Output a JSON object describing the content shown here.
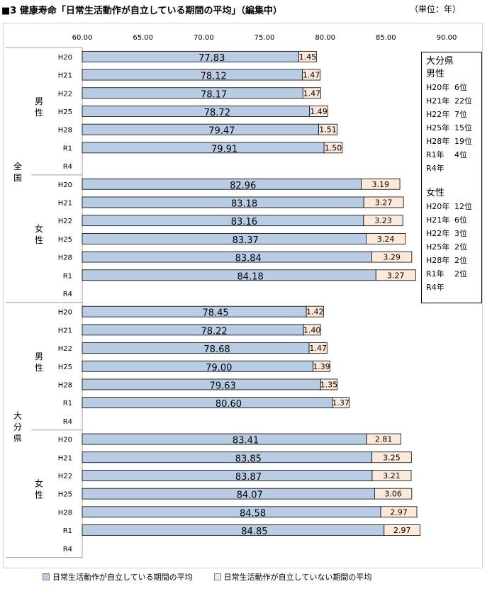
{
  "title": "■3  健康寿命「日常生活動作が自立している期間の平均」（編集中）",
  "unit": "（単位：年）",
  "colors": {
    "independent": "#b8cce4",
    "dependent": "#fde9d9",
    "border": "#000000",
    "grid": "#c8c8c8"
  },
  "rank_box": {
    "header": "大分県",
    "male_label": "男性",
    "male": [
      {
        "year": "H20年",
        "rank": "6位"
      },
      {
        "year": "H21年",
        "rank": "22位"
      },
      {
        "year": "H22年",
        "rank": "7位"
      },
      {
        "year": "H25年",
        "rank": "15位"
      },
      {
        "year": "H28年",
        "rank": "19位"
      },
      {
        "year": "R1年",
        "rank": "4位"
      },
      {
        "year": "R4年",
        "rank": ""
      }
    ],
    "female_label": "女性",
    "female": [
      {
        "year": "H20年",
        "rank": "12位"
      },
      {
        "year": "H21年",
        "rank": "6位"
      },
      {
        "year": "H22年",
        "rank": "3位"
      },
      {
        "year": "H25年",
        "rank": "2位"
      },
      {
        "year": "H28年",
        "rank": "2位"
      },
      {
        "year": "R1年",
        "rank": "2位"
      },
      {
        "year": "R4年",
        "rank": ""
      }
    ]
  },
  "chart_data": {
    "type": "bar",
    "orientation": "horizontal",
    "stacked": true,
    "xlim": [
      60,
      90
    ],
    "xticks": [
      "60.00",
      "65.00",
      "70.00",
      "75.00",
      "80.00",
      "85.00",
      "90.00"
    ],
    "grid": false,
    "legend_position": "bottom",
    "series": [
      {
        "name": "日常生活動作が自立している期間の平均",
        "color": "#b8cce4"
      },
      {
        "name": "日常生活動作が自立していない期間の平均",
        "color": "#fde9d9"
      }
    ],
    "groups": [
      {
        "region": "全国",
        "sex": "男性",
        "rows": [
          {
            "year": "H20",
            "independent": 77.83,
            "dependent": 1.45
          },
          {
            "year": "H21",
            "independent": 78.12,
            "dependent": 1.47
          },
          {
            "year": "H22",
            "independent": 78.17,
            "dependent": 1.47
          },
          {
            "year": "H25",
            "independent": 78.72,
            "dependent": 1.49
          },
          {
            "year": "H28",
            "independent": 79.47,
            "dependent": 1.51
          },
          {
            "year": "R1",
            "independent": 79.91,
            "dependent": 1.5
          },
          {
            "year": "R4",
            "independent": null,
            "dependent": null
          }
        ]
      },
      {
        "region": "全国",
        "sex": "女性",
        "rows": [
          {
            "year": "H20",
            "independent": 82.96,
            "dependent": 3.19
          },
          {
            "year": "H21",
            "independent": 83.18,
            "dependent": 3.27
          },
          {
            "year": "H22",
            "independent": 83.16,
            "dependent": 3.23
          },
          {
            "year": "H25",
            "independent": 83.37,
            "dependent": 3.24
          },
          {
            "year": "H28",
            "independent": 83.84,
            "dependent": 3.29
          },
          {
            "year": "R1",
            "independent": 84.18,
            "dependent": 3.27
          },
          {
            "year": "R4",
            "independent": null,
            "dependent": null
          }
        ]
      },
      {
        "region": "大分県",
        "sex": "男性",
        "rows": [
          {
            "year": "H20",
            "independent": 78.45,
            "dependent": 1.42
          },
          {
            "year": "H21",
            "independent": 78.22,
            "dependent": 1.4
          },
          {
            "year": "H22",
            "independent": 78.68,
            "dependent": 1.47
          },
          {
            "year": "H25",
            "independent": 79.0,
            "dependent": 1.39
          },
          {
            "year": "H28",
            "independent": 79.63,
            "dependent": 1.35
          },
          {
            "year": "R1",
            "independent": 80.6,
            "dependent": 1.37
          },
          {
            "year": "R4",
            "independent": null,
            "dependent": null
          }
        ]
      },
      {
        "region": "大分県",
        "sex": "女性",
        "rows": [
          {
            "year": "H20",
            "independent": 83.41,
            "dependent": 2.81
          },
          {
            "year": "H21",
            "independent": 83.85,
            "dependent": 3.25
          },
          {
            "year": "H22",
            "independent": 83.87,
            "dependent": 3.21
          },
          {
            "year": "H25",
            "independent": 84.07,
            "dependent": 3.06
          },
          {
            "year": "H28",
            "independent": 84.58,
            "dependent": 2.97
          },
          {
            "year": "R1",
            "independent": 84.85,
            "dependent": 2.97
          },
          {
            "year": "R4",
            "independent": null,
            "dependent": null
          }
        ]
      }
    ]
  }
}
